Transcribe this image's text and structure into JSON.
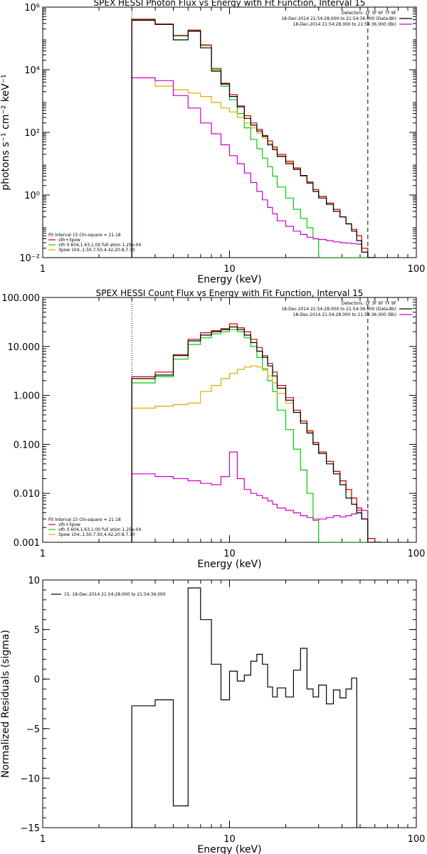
{
  "colors": {
    "data": "#000000",
    "total": "#cc0000",
    "thermal": "#00cc00",
    "power": "#ddaa00",
    "background": "#cc00cc"
  },
  "chart_data": [
    {
      "type": "line",
      "title": "SPEX HESSI Photon Flux vs Energy with Fit Function, Interval 15",
      "xlabel": "Energy (keV)",
      "ylabel": "photons s⁻¹ cm⁻² keV⁻¹",
      "xscale": "log",
      "yscale": "log",
      "xlim": [
        1,
        100
      ],
      "ylim": [
        0.01,
        1000000
      ],
      "xticks": [
        {
          "v": 1,
          "t": "1"
        },
        {
          "v": 10,
          "t": "10"
        },
        {
          "v": 100,
          "t": "100"
        }
      ],
      "yticks": [
        {
          "v": 0.01,
          "t": "10⁻²"
        },
        {
          "v": 1,
          "t": "10⁰"
        },
        {
          "v": 100,
          "t": "10²"
        },
        {
          "v": 10000,
          "t": "10⁴"
        },
        {
          "v": 1000000,
          "t": "10⁶"
        }
      ],
      "vlines": [
        {
          "x": 3,
          "style": "dotted"
        },
        {
          "x": 55,
          "style": "dashed"
        }
      ],
      "header": [
        {
          "text": "Detectors: 1F 3F 6F 7F 9F",
          "key": "",
          "color": "data"
        },
        {
          "text": "18-Dec-2014 21:54:28.000 to 21:54:36.000 (Data-Bk)",
          "key": "data",
          "color": "data"
        },
        {
          "text": "18-Dec-2014 21:54:28.000 to 21:54:36.000 (Bk)",
          "key": "background",
          "color": "background"
        }
      ],
      "legend": [
        {
          "text": "Fit Interval 15   Chi-square = 21.18",
          "key": "",
          "color": "data"
        },
        {
          "text": "vth+3pow",
          "key": "total",
          "color": "total"
        },
        {
          "text": "vth 0.604,1.63,1.00  full ation 1.25e-04",
          "key": "thermal",
          "color": "thermal"
        },
        {
          "text": "3pow 104.,1.50,7.50,4.42,20.8,7.30",
          "key": "power",
          "color": "power"
        }
      ],
      "edges": [
        3,
        4,
        5,
        6,
        7,
        8,
        9,
        10,
        11,
        12,
        13,
        14,
        15,
        16,
        17,
        18,
        20,
        22,
        24,
        26,
        28,
        30,
        33,
        36,
        39,
        42,
        45,
        48,
        51,
        55,
        60
      ],
      "series": [
        {
          "key": "thermal",
          "color": "thermal",
          "values": [
            400000,
            280000,
            120000,
            180000,
            60000,
            10000,
            3000,
            1100,
            400,
            140,
            60,
            30,
            15,
            8,
            4,
            1.8,
            0.8,
            0.35,
            0.18,
            0.09,
            0.04,
            0.01,
            0.01,
            0.01,
            0.01,
            0.01,
            0.01,
            0.01,
            0.01,
            0.01
          ]
        },
        {
          "key": "power",
          "color": "power",
          "values": [
            5500,
            3000,
            2300,
            1800,
            1400,
            900,
            600,
            450,
            300,
            200,
            140,
            95,
            65,
            45,
            30,
            18,
            11,
            7,
            4,
            2.5,
            1.5,
            0.9,
            0.55,
            0.35,
            0.2,
            0.12,
            0.08,
            0.05,
            0.02,
            0.01
          ]
        },
        {
          "key": "background",
          "color": "background",
          "values": [
            5500,
            4500,
            1500,
            600,
            200,
            90,
            40,
            18,
            10,
            5,
            2.5,
            1.3,
            0.7,
            0.4,
            0.25,
            0.15,
            0.1,
            0.07,
            0.055,
            0.045,
            0.04,
            0.038,
            0.035,
            0.032,
            0.03,
            0.029,
            0.028,
            0.027,
            0.015,
            0.01
          ]
        },
        {
          "key": "total",
          "color": "total",
          "values": [
            410000,
            290000,
            125000,
            185000,
            62000,
            11000,
            3700,
            1600,
            700,
            340,
            200,
            125,
            80,
            53,
            34,
            20,
            12,
            7.3,
            4.2,
            2.6,
            1.5,
            0.9,
            0.55,
            0.35,
            0.2,
            0.12,
            0.08,
            0.05,
            0.02,
            0.01
          ]
        },
        {
          "key": "data",
          "color": "data",
          "values": [
            380000,
            280000,
            90000,
            170000,
            50000,
            9000,
            3500,
            1400,
            650,
            280,
            170,
            110,
            75,
            40,
            28,
            17,
            10,
            6.5,
            4.2,
            2.4,
            1.3,
            0.8,
            0.5,
            0.3,
            0.2,
            0.12,
            0.07,
            0.035,
            0.015,
            0.01
          ]
        }
      ]
    },
    {
      "type": "line",
      "title": "SPEX HESSI Count Flux vs Energy with Fit Function, Interval 15",
      "xlabel": "Energy (keV)",
      "ylabel": "",
      "xscale": "log",
      "yscale": "log",
      "xlim": [
        1,
        100
      ],
      "ylim": [
        0.001,
        100
      ],
      "xticks": [
        {
          "v": 1,
          "t": "1"
        },
        {
          "v": 10,
          "t": "10"
        },
        {
          "v": 100,
          "t": "100"
        }
      ],
      "yticks": [
        {
          "v": 0.001,
          "t": "0.001"
        },
        {
          "v": 0.01,
          "t": "0.010"
        },
        {
          "v": 0.1,
          "t": "0.100"
        },
        {
          "v": 1,
          "t": "1.000"
        },
        {
          "v": 10,
          "t": "10.000"
        },
        {
          "v": 100,
          "t": "100.000"
        }
      ],
      "vlines": [
        {
          "x": 3,
          "style": "dotted"
        },
        {
          "x": 55,
          "style": "dashed"
        }
      ],
      "header": [
        {
          "text": "Detectors: 1F 3F 6F 7F 9F",
          "key": "",
          "color": "data"
        },
        {
          "text": "18-Dec-2014 21:54:28.000 to 21:54:36.000 (Data-Bk)",
          "key": "data",
          "color": "data"
        },
        {
          "text": "18-Dec-2014 21:54:28.000 to 21:54:36.000 (Bk)",
          "key": "background",
          "color": "background"
        }
      ],
      "legend": [
        {
          "text": "Fit Interval 15   Chi-square = 21.18",
          "key": "",
          "color": "data"
        },
        {
          "text": "vth+3pow",
          "key": "total",
          "color": "total"
        },
        {
          "text": "vth 0.604,1.63,1.00  full ation 1.25e-04",
          "key": "thermal",
          "color": "thermal"
        },
        {
          "text": "3pow 104.,1.50,7.50,4.42,20.8,7.30",
          "key": "power",
          "color": "power"
        }
      ],
      "edges": [
        3,
        4,
        5,
        6,
        7,
        8,
        9,
        10,
        11,
        12,
        13,
        14,
        15,
        16,
        17,
        18,
        20,
        22,
        24,
        26,
        28,
        30,
        33,
        36,
        39,
        42,
        45,
        48,
        51,
        55,
        60,
        65
      ],
      "series": [
        {
          "key": "thermal",
          "color": "thermal",
          "values": [
            1.8,
            2.4,
            5.5,
            11,
            15,
            18,
            20,
            22,
            20,
            15,
            10,
            6,
            3.5,
            2,
            1.2,
            0.5,
            0.2,
            0.08,
            0.03,
            0.01,
            0.003,
            0.001,
            0.001,
            0.001,
            0.001,
            0.001,
            0.001,
            0.001,
            0.001,
            0.001,
            0.001
          ]
        },
        {
          "key": "power",
          "color": "power",
          "values": [
            0.55,
            0.6,
            0.65,
            0.7,
            1.2,
            1.6,
            2.2,
            2.8,
            3.4,
            3.8,
            4.0,
            3.8,
            3.3,
            2.5,
            1.8,
            1.1,
            0.7,
            0.45,
            0.3,
            0.18,
            0.11,
            0.07,
            0.045,
            0.028,
            0.018,
            0.012,
            0.008,
            0.005,
            0.003,
            0.0012,
            0.001
          ]
        },
        {
          "key": "background",
          "color": "background",
          "values": [
            0.025,
            0.022,
            0.02,
            0.018,
            0.016,
            0.015,
            0.022,
            0.07,
            0.02,
            0.012,
            0.01,
            0.009,
            0.008,
            0.007,
            0.006,
            0.005,
            0.0045,
            0.004,
            0.0035,
            0.0032,
            0.0028,
            0.003,
            0.0032,
            0.0035,
            0.0033,
            0.0035,
            0.0038,
            0.0045,
            0.0045,
            0.001,
            0.001
          ]
        },
        {
          "key": "total",
          "color": "total",
          "values": [
            2.4,
            3,
            6.8,
            14,
            19,
            21,
            23,
            29,
            24,
            20,
            14,
            9.5,
            6.5,
            4.5,
            3,
            1.6,
            0.9,
            0.5,
            0.3,
            0.19,
            0.11,
            0.07,
            0.045,
            0.028,
            0.018,
            0.012,
            0.008,
            0.005,
            0.003,
            0.0012,
            0.001
          ]
        },
        {
          "key": "data",
          "color": "data",
          "values": [
            2.2,
            2.6,
            6.5,
            13,
            17,
            20,
            22,
            25,
            22,
            17,
            12,
            8,
            6,
            4,
            2.5,
            1.4,
            0.8,
            0.45,
            0.27,
            0.17,
            0.1,
            0.065,
            0.04,
            0.025,
            0.015,
            0.008,
            0.006,
            0.004,
            0.003,
            0.001,
            0.001
          ]
        }
      ]
    },
    {
      "type": "line",
      "title": "",
      "xlabel": "Energy (keV)",
      "ylabel": "Normalized Residuals (sigma)",
      "xscale": "log",
      "yscale": "linear",
      "xlim": [
        1,
        100
      ],
      "ylim": [
        -15,
        10
      ],
      "xticks": [
        {
          "v": 1,
          "t": "1"
        },
        {
          "v": 10,
          "t": "10"
        },
        {
          "v": 100,
          "t": "100"
        }
      ],
      "yticks": [
        {
          "v": -15,
          "t": "−15"
        },
        {
          "v": -10,
          "t": "−10"
        },
        {
          "v": -5,
          "t": "−5"
        },
        {
          "v": 0,
          "t": "0"
        },
        {
          "v": 5,
          "t": "5"
        },
        {
          "v": 10,
          "t": "10"
        }
      ],
      "vlines": [],
      "header": [],
      "legend": [
        {
          "text": "15. 18-Dec-2014 21:54:28.000 to 21:54:36.000",
          "key": "data",
          "color": "data"
        }
      ],
      "edges": [
        3,
        4,
        5,
        6,
        7,
        8,
        9,
        10,
        11,
        12,
        13,
        14,
        15,
        16,
        17,
        18,
        20,
        22,
        24,
        26,
        28,
        30,
        33,
        36,
        39,
        42,
        45,
        48,
        51,
        55
      ],
      "series": [
        {
          "key": "data",
          "color": "data",
          "values": [
            -2.7,
            -2.1,
            -12.8,
            9.2,
            6.0,
            1.5,
            -2.1,
            0.8,
            -0.2,
            0.4,
            1.8,
            2.5,
            1.5,
            -0.8,
            -1.8,
            -0.9,
            -1.8,
            0.9,
            3.1,
            -1.0,
            -1.8,
            -0.6,
            -2.5,
            -1.1,
            -1.9,
            -1.0,
            0.1,
            -15.5,
            -15.5
          ]
        }
      ]
    }
  ]
}
